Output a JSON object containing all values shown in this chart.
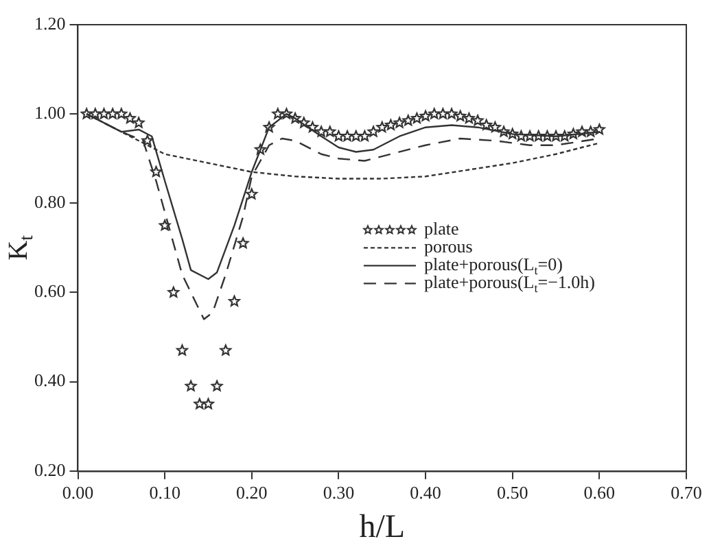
{
  "chart_data": {
    "type": "line",
    "xlabel": "h/L",
    "ylabel": "K$_{t}$",
    "xlim": [
      0,
      0.7
    ],
    "ylim": [
      0.2,
      1.2
    ],
    "xticks": [
      {
        "value": 0,
        "label": "0.00"
      },
      {
        "value": 0.1,
        "label": "0.10"
      },
      {
        "value": 0.2,
        "label": "0.20"
      },
      {
        "value": 0.3,
        "label": "0.30"
      },
      {
        "value": 0.4,
        "label": "0.40"
      },
      {
        "value": 0.5,
        "label": "0.50"
      },
      {
        "value": 0.6,
        "label": "0.60"
      },
      {
        "value": 0.7,
        "label": "0.70"
      }
    ],
    "yticks": [
      {
        "value": 0.2,
        "label": "0.20"
      },
      {
        "value": 0.4,
        "label": "0.40"
      },
      {
        "value": 0.6,
        "label": "0.60"
      },
      {
        "value": 0.8,
        "label": "0.80"
      },
      {
        "value": 1.0,
        "label": "1.00"
      },
      {
        "value": 1.2,
        "label": "1.20"
      }
    ],
    "grid": false,
    "legend": "right",
    "series": [
      {
        "name": "plate",
        "type": "scatter",
        "marker": "star",
        "color": "#333333",
        "x": [
          0.01,
          0.02,
          0.03,
          0.04,
          0.05,
          0.06,
          0.07,
          0.08,
          0.09,
          0.1,
          0.11,
          0.12,
          0.13,
          0.14,
          0.15,
          0.16,
          0.17,
          0.18,
          0.19,
          0.2,
          0.21,
          0.22,
          0.23,
          0.24,
          0.25,
          0.26,
          0.27,
          0.28,
          0.29,
          0.3,
          0.31,
          0.32,
          0.33,
          0.34,
          0.35,
          0.36,
          0.37,
          0.38,
          0.39,
          0.4,
          0.41,
          0.42,
          0.43,
          0.44,
          0.45,
          0.46,
          0.47,
          0.48,
          0.49,
          0.5,
          0.51,
          0.52,
          0.53,
          0.54,
          0.55,
          0.56,
          0.57,
          0.58,
          0.59,
          0.6
        ],
        "values": [
          1.0,
          1.0,
          1.0,
          1.0,
          1.0,
          0.99,
          0.98,
          0.94,
          0.87,
          0.75,
          0.6,
          0.47,
          0.39,
          0.35,
          0.35,
          0.39,
          0.47,
          0.58,
          0.71,
          0.82,
          0.92,
          0.97,
          1.0,
          1.0,
          0.99,
          0.98,
          0.97,
          0.96,
          0.96,
          0.95,
          0.95,
          0.95,
          0.95,
          0.96,
          0.97,
          0.975,
          0.98,
          0.985,
          0.99,
          0.995,
          1.0,
          1.0,
          1.0,
          0.995,
          0.99,
          0.985,
          0.975,
          0.97,
          0.96,
          0.955,
          0.95,
          0.95,
          0.95,
          0.95,
          0.95,
          0.95,
          0.955,
          0.96,
          0.96,
          0.965
        ]
      },
      {
        "name": "porous",
        "type": "line",
        "line_style": "dotted",
        "marker": "none",
        "color": "#333333",
        "x": [
          0.01,
          0.05,
          0.08,
          0.1,
          0.15,
          0.2,
          0.25,
          0.3,
          0.35,
          0.4,
          0.45,
          0.5,
          0.55,
          0.6
        ],
        "values": [
          1.0,
          0.96,
          0.93,
          0.91,
          0.89,
          0.87,
          0.86,
          0.855,
          0.855,
          0.86,
          0.875,
          0.89,
          0.91,
          0.935
        ]
      },
      {
        "name": "plate+porous(L$_{t}$=0)",
        "type": "line",
        "line_style": "solid",
        "marker": "none",
        "color": "#333333",
        "x": [
          0.01,
          0.05,
          0.07,
          0.085,
          0.1,
          0.12,
          0.13,
          0.15,
          0.16,
          0.18,
          0.2,
          0.22,
          0.24,
          0.25,
          0.28,
          0.3,
          0.32,
          0.34,
          0.37,
          0.4,
          0.43,
          0.46,
          0.5,
          0.55,
          0.6
        ],
        "values": [
          1.0,
          0.96,
          0.965,
          0.95,
          0.85,
          0.72,
          0.65,
          0.63,
          0.645,
          0.75,
          0.87,
          0.97,
          1.0,
          0.99,
          0.95,
          0.925,
          0.915,
          0.92,
          0.95,
          0.97,
          0.975,
          0.97,
          0.955,
          0.95,
          0.96
        ]
      },
      {
        "name": "plate+porous(L$_{t}$=−1.0h)",
        "type": "line",
        "line_style": "dashed",
        "marker": "none",
        "color": "#333333",
        "x": [
          0.01,
          0.05,
          0.075,
          0.09,
          0.1,
          0.12,
          0.14,
          0.145,
          0.155,
          0.17,
          0.19,
          0.2,
          0.22,
          0.235,
          0.25,
          0.28,
          0.3,
          0.33,
          0.36,
          0.4,
          0.44,
          0.48,
          0.52,
          0.55,
          0.6
        ],
        "values": [
          1.0,
          0.96,
          0.94,
          0.85,
          0.78,
          0.64,
          0.56,
          0.54,
          0.555,
          0.64,
          0.77,
          0.86,
          0.93,
          0.945,
          0.94,
          0.91,
          0.9,
          0.895,
          0.91,
          0.93,
          0.945,
          0.94,
          0.93,
          0.93,
          0.945
        ]
      }
    ]
  }
}
